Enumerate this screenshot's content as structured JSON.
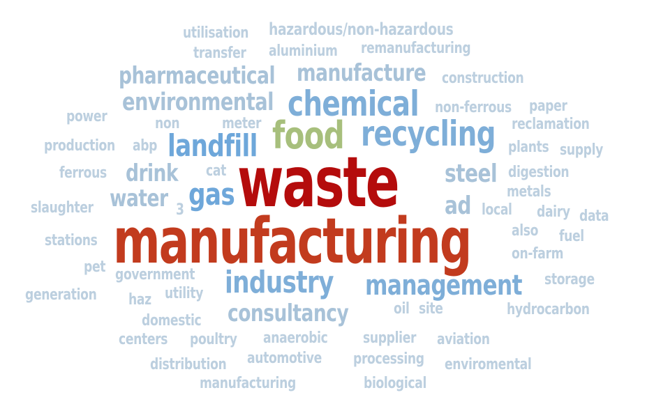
{
  "colors": {
    "pale": "#bccfdf",
    "light": "#a8c2d8",
    "mid": "#9ab9d4",
    "blue": "#7eaed8",
    "bright": "#6ea7da",
    "green": "#a7bf7c",
    "red": "#b40c0c",
    "orange": "#c23b1e"
  },
  "words": [
    "utilisation",
    "hazardous/non-hazardous",
    "transfer",
    "aluminium",
    "remanufacturing",
    "pharmaceutical",
    "manufacture",
    "construction",
    "environmental",
    "chemical",
    "non-ferrous",
    "paper",
    "power",
    "non",
    "meter",
    "food",
    "recycling",
    "reclamation",
    "production",
    "abp",
    "landfill",
    "plants",
    "supply",
    "ferrous",
    "drink",
    "cat",
    "waste",
    "steel",
    "digestion",
    "water",
    "gas",
    "metals",
    "slaughter",
    "3",
    "ad",
    "local",
    "dairy",
    "data",
    "manufacturing",
    "also",
    "fuel",
    "stations",
    "on-farm",
    "pet",
    "government",
    "industry",
    "management",
    "storage",
    "generation",
    "haz",
    "utility",
    "consultancy",
    "oil",
    "site",
    "hydrocarbon",
    "domestic",
    "centers",
    "poultry",
    "anaerobic",
    "supplier",
    "aviation",
    "automotive",
    "processing",
    "distribution",
    "enviromental",
    "manufacturing",
    "biological"
  ]
}
